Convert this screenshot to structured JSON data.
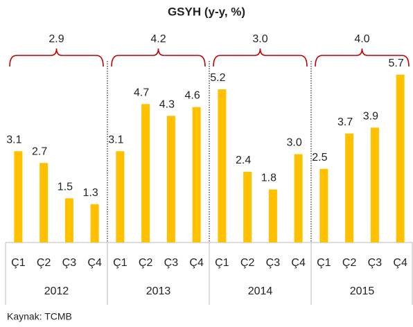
{
  "chart_data": {
    "type": "bar",
    "title": "GSYH (y-y, %)",
    "categories": [
      "Ç1",
      "Ç2",
      "Ç3",
      "Ç4",
      "Ç1",
      "Ç2",
      "Ç3",
      "Ç4",
      "Ç1",
      "Ç2",
      "Ç3",
      "Ç4",
      "Ç1",
      "Ç2",
      "Ç3",
      "Ç4"
    ],
    "groups": [
      "2012",
      "2013",
      "2014",
      "2015"
    ],
    "values": [
      3.1,
      2.7,
      1.5,
      1.3,
      3.1,
      4.7,
      4.3,
      4.6,
      5.2,
      2.4,
      1.8,
      3.0,
      2.5,
      3.7,
      3.9,
      5.7
    ],
    "value_labels": [
      "3.1",
      "2.7",
      "1.5",
      "1.3",
      "3.1",
      "4.7",
      "4.3",
      "4.6",
      "5.2",
      "2.4",
      "1.8",
      "3.0",
      "2.5",
      "3.7",
      "3.9",
      "5.7"
    ],
    "annual_values": [
      2.9,
      4.2,
      3.0,
      4.0
    ],
    "annual_value_labels": [
      "2.9",
      "4.2",
      "3.0",
      "4.0"
    ],
    "color": "#FFC000",
    "brace_color": "#C00000",
    "ylim": [
      0,
      6
    ],
    "source": "Kaynak: TCMB"
  }
}
